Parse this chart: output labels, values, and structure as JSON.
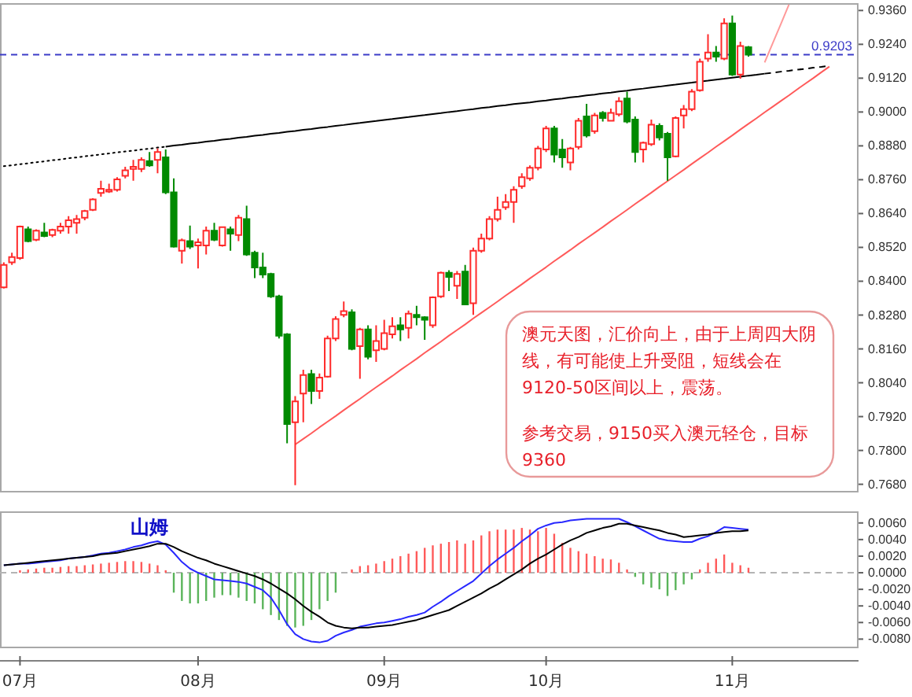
{
  "chart_data": [
    {
      "type": "candlestick",
      "categories": [
        null,
        null,
        null,
        null,
        null,
        null,
        null,
        null,
        null,
        null,
        null,
        null,
        null,
        null,
        null,
        null,
        null,
        null,
        null,
        null,
        null,
        null,
        null,
        null,
        null,
        null,
        null,
        null,
        null,
        null,
        null,
        null,
        null,
        null,
        null,
        null,
        null,
        null,
        null,
        null,
        null,
        null,
        null,
        null,
        null,
        null,
        null,
        null,
        null,
        null,
        null,
        null,
        null,
        null,
        null,
        null,
        null,
        null,
        null,
        null,
        null,
        null,
        null,
        null,
        null,
        null,
        null,
        null,
        null,
        null,
        null,
        null,
        null,
        null,
        null,
        null,
        null,
        null,
        null,
        null,
        null,
        null,
        null,
        null,
        null,
        null,
        null,
        null,
        null,
        null,
        null,
        null,
        null,
        null,
        null,
        null,
        null,
        null,
        null,
        null,
        null,
        null,
        null
      ],
      "ohlc": [
        [
          0.8378,
          0.8467,
          0.8374,
          0.8458
        ],
        [
          0.8467,
          0.8501,
          0.8458,
          0.8486
        ],
        [
          0.8482,
          0.8597,
          0.8476,
          0.8594
        ],
        [
          0.8584,
          0.8594,
          0.8538,
          0.8542
        ],
        [
          0.8547,
          0.8584,
          0.8542,
          0.8579
        ],
        [
          0.8573,
          0.8607,
          0.8556,
          0.856
        ],
        [
          0.8564,
          0.8586,
          0.8556,
          0.8582
        ],
        [
          0.8579,
          0.8607,
          0.8569,
          0.8594
        ],
        [
          0.8594,
          0.8631,
          0.8569,
          0.8616
        ],
        [
          0.8607,
          0.8635,
          0.8569,
          0.862
        ],
        [
          0.8625,
          0.8653,
          0.8616,
          0.8649
        ],
        [
          0.8653,
          0.8694,
          0.8649,
          0.869
        ],
        [
          0.8713,
          0.8756,
          0.87,
          0.8728
        ],
        [
          0.8718,
          0.8746,
          0.8713,
          0.8724
        ],
        [
          0.8724,
          0.8769,
          0.8718,
          0.8761
        ],
        [
          0.8774,
          0.8806,
          0.8765,
          0.8793
        ],
        [
          0.8798,
          0.883,
          0.8756,
          0.8806
        ],
        [
          0.8798,
          0.8839,
          0.8787,
          0.883
        ],
        [
          0.8826,
          0.8858,
          0.8806,
          0.8811
        ],
        [
          0.883,
          0.8871,
          0.8783,
          0.8858
        ],
        [
          0.8839,
          0.8867,
          0.8709,
          0.8715
        ],
        [
          0.8715,
          0.8765,
          0.8519,
          0.8523
        ],
        [
          0.8508,
          0.8551,
          0.8463,
          0.8545
        ],
        [
          0.8542,
          0.8597,
          0.8514,
          0.8523
        ],
        [
          0.8527,
          0.8551,
          0.8445,
          0.8538
        ],
        [
          0.8527,
          0.8594,
          0.8495,
          0.8579
        ],
        [
          0.8579,
          0.8607,
          0.8542,
          0.8547
        ],
        [
          0.8527,
          0.8594,
          0.8523,
          0.8592
        ],
        [
          0.8584,
          0.8594,
          0.8508,
          0.8569
        ],
        [
          0.8564,
          0.8635,
          0.8542,
          0.8625
        ],
        [
          0.862,
          0.8668,
          0.849,
          0.8495
        ],
        [
          0.8501,
          0.8508,
          0.8411,
          0.8449
        ],
        [
          0.8449,
          0.8501,
          0.8411,
          0.8424
        ],
        [
          0.8426,
          0.843,
          0.8341,
          0.8346
        ],
        [
          0.8346,
          0.8352,
          0.8197,
          0.8207
        ],
        [
          0.8212,
          0.8216,
          0.7825,
          0.7894
        ],
        [
          0.79,
          0.7993,
          0.7677,
          0.7974
        ],
        [
          0.8002,
          0.8086,
          0.79,
          0.8067
        ],
        [
          0.8071,
          0.8086,
          0.7965,
          0.8011
        ],
        [
          0.8011,
          0.8073,
          0.7983,
          0.8058
        ],
        [
          0.8062,
          0.8207,
          0.8058,
          0.8197
        ],
        [
          0.8197,
          0.8276,
          0.8188,
          0.8266
        ],
        [
          0.8281,
          0.8328,
          0.8272,
          0.8294
        ],
        [
          0.829,
          0.83,
          0.8155,
          0.816
        ],
        [
          0.817,
          0.8235,
          0.8054,
          0.8229
        ],
        [
          0.8229,
          0.8244,
          0.8123,
          0.8132
        ],
        [
          0.8155,
          0.8244,
          0.8114,
          0.8188
        ],
        [
          0.816,
          0.8263,
          0.8155,
          0.8216
        ],
        [
          0.8212,
          0.8272,
          0.8197,
          0.824
        ],
        [
          0.8244,
          0.8272,
          0.8188,
          0.8229
        ],
        [
          0.8235,
          0.8296,
          0.8197,
          0.8285
        ],
        [
          0.8281,
          0.8313,
          0.8244,
          0.8272
        ],
        [
          0.8272,
          0.8276,
          0.8192,
          0.8263
        ],
        [
          0.8244,
          0.8346,
          0.8235,
          0.8343
        ],
        [
          0.8346,
          0.8434,
          0.8341,
          0.843
        ],
        [
          0.843,
          0.8439,
          0.8365,
          0.8415
        ],
        [
          0.8384,
          0.8436,
          0.8337,
          0.8426
        ],
        [
          0.8434,
          0.8458,
          0.8315,
          0.8318
        ],
        [
          0.8322,
          0.8519,
          0.8281,
          0.8508
        ],
        [
          0.8508,
          0.8569,
          0.8501,
          0.8551
        ],
        [
          0.8551,
          0.8631,
          0.8545,
          0.862
        ],
        [
          0.862,
          0.87,
          0.8612,
          0.8653
        ],
        [
          0.8662,
          0.8709,
          0.8653,
          0.8681
        ],
        [
          0.8681,
          0.8737,
          0.8607,
          0.8724
        ],
        [
          0.8737,
          0.8783,
          0.8728,
          0.8769
        ],
        [
          0.8765,
          0.8811,
          0.8756,
          0.8802
        ],
        [
          0.8802,
          0.888,
          0.8793,
          0.8871
        ],
        [
          0.8867,
          0.8951,
          0.8858,
          0.8942
        ],
        [
          0.8942,
          0.8951,
          0.8821,
          0.8849
        ],
        [
          0.8867,
          0.8904,
          0.8802,
          0.8839
        ],
        [
          0.8821,
          0.8876,
          0.8793,
          0.8871
        ],
        [
          0.8876,
          0.8979,
          0.8867,
          0.8969
        ],
        [
          0.8984,
          0.9029,
          0.891,
          0.8917
        ],
        [
          0.8932,
          0.8997,
          0.8923,
          0.8988
        ],
        [
          0.8997,
          0.9003,
          0.8966,
          0.8979
        ],
        [
          0.8969,
          0.9012,
          0.8966,
          0.8997
        ],
        [
          0.8992,
          0.9053,
          0.8984,
          0.9038
        ],
        [
          0.9048,
          0.9072,
          0.896,
          0.8966
        ],
        [
          0.8973,
          0.8984,
          0.8821,
          0.8858
        ],
        [
          0.8867,
          0.8895,
          0.8821,
          0.8891
        ],
        [
          0.8886,
          0.8973,
          0.888,
          0.8955
        ],
        [
          0.8951,
          0.896,
          0.8899,
          0.891
        ],
        [
          0.8923,
          0.8929,
          0.8756,
          0.8839
        ],
        [
          0.8843,
          0.8984,
          0.8839,
          0.8979
        ],
        [
          0.8988,
          0.9025,
          0.8942,
          0.901
        ],
        [
          0.901,
          0.9081,
          0.9003,
          0.9072
        ],
        [
          0.9077,
          0.9189,
          0.9072,
          0.9178
        ],
        [
          0.9189,
          0.9276,
          0.9178,
          0.9211
        ],
        [
          0.9211,
          0.9234,
          0.9178,
          0.9196
        ],
        [
          0.9189,
          0.9332,
          0.9184,
          0.9314
        ],
        [
          0.9314,
          0.9342,
          0.9128,
          0.9133
        ],
        [
          0.9133,
          0.9249,
          0.9118,
          0.9234
        ],
        [
          0.923,
          0.9234,
          0.9196,
          0.9203
        ],
        null,
        null,
        null,
        null,
        null,
        null,
        null,
        null,
        null,
        null
      ],
      "series": [
        {
          "type": "line",
          "color": "#000000",
          "line_style": "dotted",
          "values": [
            0.8808,
            0.8811,
            0.8815,
            0.8818,
            0.8822,
            0.8825,
            0.8829,
            0.8832,
            0.8836,
            0.8839,
            0.8843,
            0.8846,
            0.885,
            0.8853,
            0.8857,
            0.886,
            0.8863,
            0.8867,
            0.887,
            0.8874,
            0.8877,
            null,
            null,
            null,
            null,
            null,
            null,
            null,
            null,
            null,
            null,
            null,
            null,
            null,
            null,
            null,
            null,
            null,
            null,
            null,
            null,
            null,
            null,
            null,
            null,
            null,
            null,
            null,
            null,
            null,
            null,
            null,
            null,
            null,
            null,
            null,
            null,
            null,
            null,
            null,
            null,
            null,
            null,
            null,
            null,
            null,
            null,
            null,
            null,
            null,
            null,
            null,
            null,
            null,
            null,
            null,
            null,
            null,
            null,
            null,
            null,
            null,
            null,
            null,
            null,
            null,
            null,
            null,
            null,
            null,
            null,
            null,
            null,
            null,
            null,
            null,
            null,
            null,
            null,
            null,
            null,
            null,
            null
          ]
        },
        {
          "type": "line",
          "color": "#000000",
          "line_style": "solid",
          "values": [
            null,
            null,
            null,
            null,
            null,
            null,
            null,
            null,
            null,
            null,
            null,
            null,
            null,
            null,
            null,
            null,
            null,
            null,
            null,
            null,
            0.8877,
            0.8881,
            0.8884,
            0.8888,
            0.8891,
            0.8895,
            0.8898,
            0.8902,
            0.8905,
            0.8909,
            0.8912,
            0.8916,
            0.8919,
            0.8923,
            0.8926,
            0.893,
            0.8933,
            0.8937,
            0.894,
            0.8944,
            0.8947,
            0.8951,
            0.8954,
            0.8958,
            0.8961,
            0.8965,
            0.8968,
            0.8972,
            0.8975,
            0.8979,
            0.8982,
            0.8986,
            0.8989,
            0.8993,
            0.8996,
            0.9,
            0.9003,
            0.9007,
            0.901,
            0.9014,
            0.9017,
            0.9021,
            0.9024,
            0.9028,
            0.9031,
            0.9034,
            0.9038,
            0.9041,
            0.9045,
            0.9048,
            0.9052,
            0.9055,
            0.9059,
            0.9062,
            0.9066,
            0.9069,
            0.9073,
            0.9076,
            0.908,
            0.9083,
            0.9087,
            0.909,
            0.9094,
            0.9097,
            0.9101,
            0.9104,
            0.9108,
            0.9111,
            0.9115,
            0.9118,
            0.9122,
            0.9125,
            0.9129,
            0.9132,
            0.9136,
            null,
            null,
            null,
            null,
            null,
            null,
            null,
            null
          ]
        },
        {
          "type": "line",
          "color": "#000000",
          "line_style": "dashed",
          "values": [
            null,
            null,
            null,
            null,
            null,
            null,
            null,
            null,
            null,
            null,
            null,
            null,
            null,
            null,
            null,
            null,
            null,
            null,
            null,
            null,
            null,
            null,
            null,
            null,
            null,
            null,
            null,
            null,
            null,
            null,
            null,
            null,
            null,
            null,
            null,
            null,
            null,
            null,
            null,
            null,
            null,
            null,
            null,
            null,
            null,
            null,
            null,
            null,
            null,
            null,
            null,
            null,
            null,
            null,
            null,
            null,
            null,
            null,
            null,
            null,
            null,
            null,
            null,
            null,
            null,
            null,
            null,
            null,
            null,
            null,
            null,
            null,
            null,
            null,
            null,
            null,
            null,
            null,
            null,
            null,
            null,
            null,
            null,
            null,
            null,
            null,
            null,
            null,
            null,
            null,
            null,
            null,
            null,
            null,
            0.9136,
            0.9139,
            0.9143,
            0.9146,
            0.915,
            0.9153,
            0.9157,
            0.916,
            0.9164
          ]
        },
        {
          "type": "line",
          "color": "#ff5a5a",
          "line_style": "solid",
          "values": [
            null,
            null,
            null,
            null,
            null,
            null,
            null,
            null,
            null,
            null,
            null,
            null,
            null,
            null,
            null,
            null,
            null,
            null,
            null,
            null,
            null,
            null,
            null,
            null,
            null,
            null,
            null,
            null,
            null,
            null,
            null,
            null,
            null,
            null,
            null,
            null,
            0.7821,
            0.7841,
            0.7861,
            0.7882,
            0.7902,
            0.7922,
            0.7943,
            0.7963,
            0.7983,
            0.8004,
            0.8024,
            0.8044,
            0.8064,
            0.8085,
            0.8105,
            0.8125,
            0.8146,
            0.8166,
            0.8186,
            0.8207,
            0.8227,
            0.8247,
            0.8268,
            0.8288,
            0.8308,
            0.8328,
            0.8349,
            0.8369,
            0.8389,
            0.841,
            0.843,
            0.845,
            0.8471,
            0.8491,
            0.8511,
            0.8532,
            0.8552,
            0.8572,
            0.8592,
            0.8613,
            0.8633,
            0.8653,
            0.8674,
            0.8694,
            0.8714,
            0.8735,
            0.8755,
            0.8775,
            0.8795,
            0.8816,
            0.8836,
            0.8856,
            0.8877,
            0.8897,
            0.8917,
            0.8938,
            0.8958,
            0.8978,
            0.8999,
            0.9019,
            0.9039,
            0.9059,
            0.908,
            0.91,
            0.912,
            0.9141,
            0.9161
          ]
        },
        {
          "type": "line",
          "color": "#ff9a9a",
          "line_style": "solid",
          "values": [
            null,
            null,
            null,
            null,
            null,
            null,
            null,
            null,
            null,
            null,
            null,
            null,
            null,
            null,
            null,
            null,
            null,
            null,
            null,
            null,
            null,
            null,
            null,
            null,
            null,
            null,
            null,
            null,
            null,
            null,
            null,
            null,
            null,
            null,
            null,
            null,
            null,
            null,
            null,
            null,
            null,
            null,
            null,
            null,
            null,
            null,
            null,
            null,
            null,
            null,
            null,
            null,
            null,
            null,
            null,
            null,
            null,
            null,
            null,
            null,
            null,
            null,
            null,
            null,
            null,
            null,
            null,
            null,
            null,
            null,
            null,
            null,
            null,
            null,
            null,
            null,
            null,
            null,
            null,
            null,
            null,
            null,
            null,
            null,
            null,
            null,
            null,
            null,
            null,
            null,
            null,
            null,
            null,
            null,
            0.9176,
            0.9244,
            0.9312,
            0.9381,
            null,
            null,
            null,
            null,
            null
          ]
        }
      ],
      "ylim": [
        0.7651,
        0.9386
      ],
      "yticks": [
        {
          "value": 0.936,
          "label": "0.9360"
        },
        {
          "value": 0.924,
          "label": "0.9240"
        },
        {
          "value": 0.912,
          "label": "0.9120"
        },
        {
          "value": 0.9,
          "label": "0.9000"
        },
        {
          "value": 0.888,
          "label": "0.8880"
        },
        {
          "value": 0.876,
          "label": "0.8760"
        },
        {
          "value": 0.864,
          "label": "0.8640"
        },
        {
          "value": 0.852,
          "label": "0.8520"
        },
        {
          "value": 0.84,
          "label": "0.8400"
        },
        {
          "value": 0.828,
          "label": "0.8280"
        },
        {
          "value": 0.816,
          "label": "0.8160"
        },
        {
          "value": 0.804,
          "label": "0.8040"
        },
        {
          "value": 0.792,
          "label": "0.7920"
        },
        {
          "value": 0.78,
          "label": "0.7800"
        },
        {
          "value": 0.768,
          "label": "0.7680"
        }
      ],
      "tick_labels": "y",
      "ref_lines": [
        {
          "axis": "y",
          "value": 0.9203,
          "label": "0.9203",
          "color": "#3c3cc8",
          "line_style": "dashed"
        }
      ],
      "annotations": [
        "澳元天图，汇价向上，由于上周四大阴线，有可能使上升受阻，短线会在9120-50区间以上，震荡。",
        "参考交易，9150买入澳元轻仓，目标9360"
      ]
    },
    {
      "type": "bar",
      "categories": [
        null,
        null,
        "07月",
        null,
        null,
        null,
        null,
        null,
        null,
        null,
        null,
        null,
        null,
        null,
        null,
        null,
        null,
        null,
        null,
        null,
        null,
        null,
        null,
        null,
        "08月",
        null,
        null,
        null,
        null,
        null,
        null,
        null,
        null,
        null,
        null,
        null,
        null,
        null,
        null,
        null,
        null,
        null,
        null,
        null,
        null,
        null,
        null,
        "09月",
        null,
        null,
        null,
        null,
        null,
        null,
        null,
        null,
        null,
        null,
        null,
        null,
        null,
        null,
        null,
        null,
        null,
        null,
        null,
        "10月",
        null,
        null,
        null,
        null,
        null,
        null,
        null,
        null,
        null,
        null,
        null,
        null,
        null,
        null,
        null,
        null,
        null,
        null,
        null,
        null,
        null,
        null,
        "11月",
        null,
        null,
        null,
        null,
        null,
        null,
        null,
        null,
        null,
        null,
        null,
        null
      ],
      "series": [
        {
          "color": "#ff5a5a",
          "values": [
            null,
            null,
            0.0003,
            0.0004,
            0.0005,
            0.0006,
            0.0006,
            0.0007,
            0.0008,
            0.0008,
            0.0009,
            0.001,
            0.0011,
            0.0012,
            0.0013,
            0.0014,
            0.0014,
            0.0013,
            0.0011,
            0.0009,
            0.0003,
            null,
            null,
            null,
            null,
            null,
            null,
            null,
            null,
            null,
            null,
            null,
            null,
            null,
            null,
            null,
            null,
            null,
            null,
            null,
            null,
            null,
            null,
            0.0004,
            0.0008,
            0.0009,
            0.0011,
            0.0014,
            0.0017,
            0.002,
            0.0023,
            0.0026,
            0.003,
            0.0033,
            0.0035,
            0.0037,
            0.0039,
            0.0035,
            0.0039,
            0.0045,
            0.005,
            0.0052,
            0.0052,
            0.0052,
            0.0054,
            0.0052,
            0.005,
            0.0054,
            0.0047,
            0.0036,
            0.003,
            0.0026,
            0.0023,
            0.002,
            0.0017,
            0.0016,
            0.0012,
            0.0004,
            null,
            null,
            null,
            null,
            null,
            null,
            null,
            null,
            0.0004,
            0.0012,
            0.0017,
            0.0022,
            0.0012,
            0.0009,
            0.0006,
            null,
            null,
            null,
            null,
            null,
            null,
            null,
            null,
            null,
            null
          ]
        },
        {
          "color": "#5ab45a",
          "values": [
            null,
            null,
            null,
            null,
            null,
            null,
            null,
            null,
            null,
            null,
            null,
            null,
            null,
            null,
            null,
            null,
            null,
            null,
            null,
            null,
            null,
            -0.0024,
            -0.0034,
            -0.0037,
            -0.0037,
            -0.0034,
            -0.003,
            -0.0027,
            -0.0027,
            -0.003,
            -0.0034,
            -0.0037,
            -0.0044,
            -0.0051,
            -0.0057,
            -0.0064,
            -0.0066,
            -0.0064,
            -0.0057,
            -0.0044,
            -0.0034,
            -0.0024,
            null,
            null,
            null,
            null,
            null,
            null,
            null,
            null,
            null,
            null,
            null,
            null,
            null,
            null,
            null,
            null,
            null,
            null,
            null,
            null,
            null,
            null,
            null,
            null,
            null,
            null,
            null,
            null,
            null,
            null,
            null,
            null,
            null,
            null,
            null,
            null,
            -0.0005,
            -0.0014,
            -0.0018,
            -0.002,
            -0.0028,
            -0.0021,
            -0.0014,
            -0.0008,
            null,
            null,
            null,
            null,
            null,
            null,
            null,
            null,
            null,
            null,
            null,
            null,
            null,
            null,
            null,
            null,
            null
          ]
        },
        {
          "type": "line",
          "color": "#2828ff",
          "values": [
            0.0009,
            0.001,
            0.0011,
            0.0011,
            0.0012,
            0.0013,
            0.0014,
            0.0015,
            0.0017,
            0.0018,
            0.0019,
            0.0021,
            0.0023,
            0.0024,
            0.0026,
            0.0028,
            0.0031,
            0.0033,
            0.0036,
            0.0038,
            0.0034,
            0.0024,
            0.0013,
            0.0005,
            0,
            -0.0004,
            -0.0008,
            -0.0009,
            -0.001,
            -0.0011,
            -0.0013,
            -0.0017,
            -0.0021,
            -0.003,
            -0.0045,
            -0.0062,
            -0.0074,
            -0.008,
            -0.0083,
            -0.0084,
            -0.0082,
            -0.0076,
            -0.0072,
            -0.0069,
            -0.0065,
            -0.0063,
            -0.0061,
            -0.006,
            -0.0058,
            -0.0056,
            -0.0053,
            -0.0051,
            -0.0048,
            -0.0041,
            -0.0035,
            -0.0028,
            -0.0022,
            -0.0016,
            -0.001,
            -0.0001,
            0.0008,
            0.0016,
            0.0023,
            0.003,
            0.0038,
            0.0045,
            0.0053,
            0.0057,
            0.006,
            0.0061,
            0.0063,
            0.0064,
            0.0065,
            0.0065,
            0.0065,
            0.0065,
            0.0065,
            0.0061,
            0.0056,
            0.0051,
            0.0046,
            0.0041,
            0.0039,
            0.0038,
            0.0037,
            0.0037,
            0.0041,
            0.0044,
            0.0049,
            0.0055,
            0.0054,
            0.0053,
            0.0052,
            null,
            null,
            null,
            null,
            null,
            null,
            null,
            null,
            null,
            null
          ]
        },
        {
          "type": "line",
          "color": "#000000",
          "values": [
            0.0009,
            0.001,
            0.0011,
            0.0012,
            0.0013,
            0.0014,
            0.0015,
            0.0016,
            0.0017,
            0.0018,
            0.0019,
            0.002,
            0.0022,
            0.0023,
            0.0024,
            0.0026,
            0.0028,
            0.003,
            0.0032,
            0.0035,
            0.0035,
            0.0031,
            0.0026,
            0.0022,
            0.0018,
            0.0015,
            0.0011,
            0.0008,
            0.0005,
            0.0002,
            -0.0001,
            -0.0004,
            -0.0008,
            -0.0013,
            -0.0019,
            -0.0025,
            -0.0032,
            -0.004,
            -0.0047,
            -0.0053,
            -0.006,
            -0.0064,
            -0.0066,
            -0.0067,
            -0.0066,
            -0.0066,
            -0.0065,
            -0.0064,
            -0.0063,
            -0.0061,
            -0.0059,
            -0.0057,
            -0.0054,
            -0.0051,
            -0.0048,
            -0.0045,
            -0.004,
            -0.0035,
            -0.003,
            -0.0025,
            -0.0019,
            -0.0014,
            -0.0008,
            -0.0002,
            0.0004,
            0.0011,
            0.0017,
            0.0022,
            0.0028,
            0.0034,
            0.0039,
            0.0043,
            0.0048,
            0.0051,
            0.0054,
            0.0056,
            0.0059,
            0.0059,
            0.0057,
            0.0055,
            0.0053,
            0.0051,
            0.0048,
            0.0046,
            0.0043,
            0.0044,
            0.0045,
            0.0046,
            0.0048,
            0.0049,
            0.005,
            0.005,
            0.0051,
            null,
            null,
            null,
            null,
            null,
            null,
            null,
            null,
            null,
            null
          ]
        }
      ],
      "ylim": [
        -0.0091,
        0.0074
      ],
      "yticks": [
        {
          "value": 0.006,
          "label": "0.0060"
        },
        {
          "value": 0.004,
          "label": "0.0040"
        },
        {
          "value": 0.002,
          "label": "0.0020"
        },
        {
          "value": 0,
          "label": "0.0000"
        },
        {
          "value": -0.002,
          "label": "-0.0020"
        },
        {
          "value": -0.004,
          "label": "-0.0040"
        },
        {
          "value": -0.006,
          "label": "-0.0060"
        },
        {
          "value": -0.008,
          "label": "-0.0080"
        }
      ],
      "ref_lines": [
        {
          "axis": "y",
          "value": 0,
          "color": "#b4b4b4",
          "line_style": "dashed"
        }
      ],
      "annotations": [
        "山姆"
      ]
    }
  ]
}
